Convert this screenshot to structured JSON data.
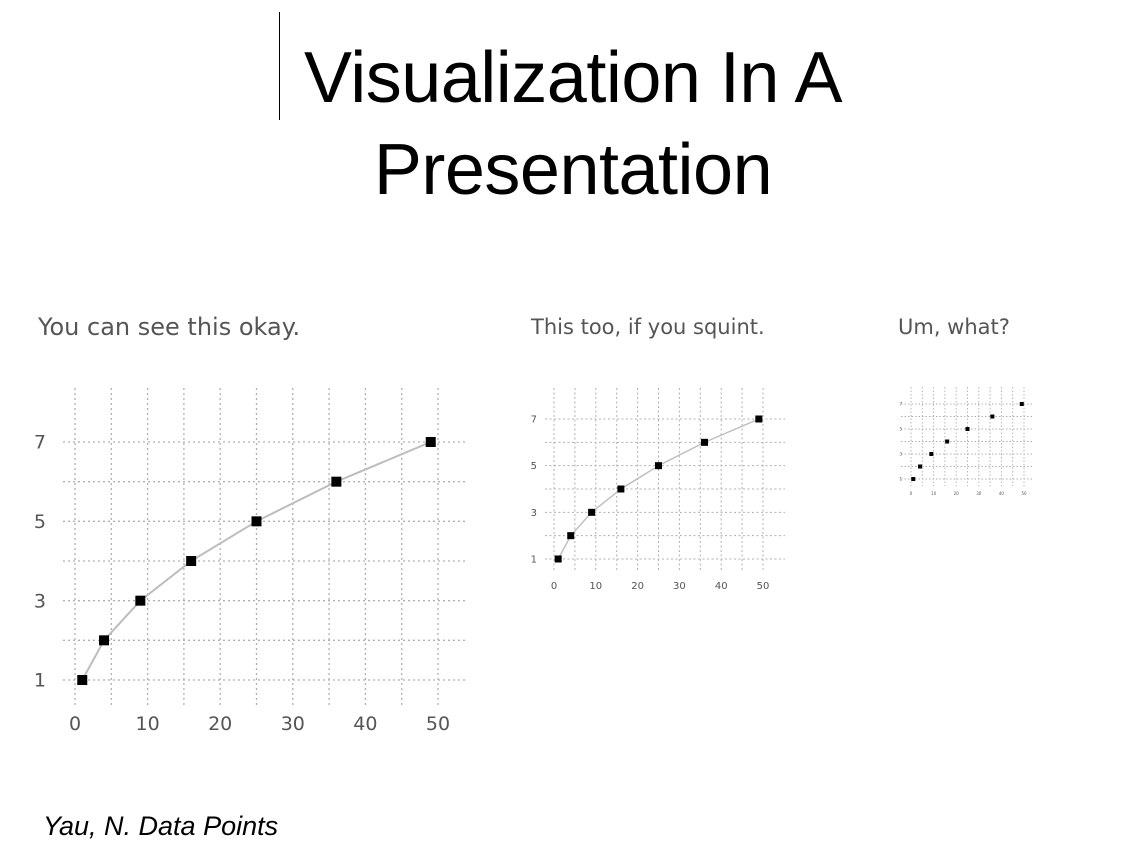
{
  "slide": {
    "title_line1": "Visualization In A",
    "title_line2": "Presentation",
    "citation": "Yau, N. Data Points"
  },
  "colors": {
    "line": "#bdbdbd",
    "grid": "#b0b0b0",
    "marker": "#000000",
    "tick_text": "#555555"
  },
  "chart_data": [
    {
      "type": "line",
      "title": "You can see this okay.",
      "x": [
        1,
        4,
        9,
        16,
        25,
        36,
        49
      ],
      "y": [
        1,
        2,
        3,
        4,
        5,
        6,
        7
      ],
      "xticks": [
        0,
        10,
        20,
        30,
        40,
        50
      ],
      "yticks": [
        1,
        3,
        5,
        7
      ],
      "xlim": [
        0,
        50
      ],
      "ylim": [
        1,
        7
      ],
      "grid": true,
      "markers": "square"
    },
    {
      "type": "line",
      "title": "This too, if you squint.",
      "x": [
        1,
        4,
        9,
        16,
        25,
        36,
        49
      ],
      "y": [
        1,
        2,
        3,
        4,
        5,
        6,
        7
      ],
      "xticks": [
        0,
        10,
        20,
        30,
        40,
        50
      ],
      "yticks": [
        1,
        3,
        5,
        7
      ],
      "xlim": [
        0,
        50
      ],
      "ylim": [
        1,
        7
      ],
      "grid": true,
      "markers": "square"
    },
    {
      "type": "scatter",
      "title": "Um, what?",
      "x": [
        1,
        4,
        9,
        16,
        25,
        36,
        49
      ],
      "y": [
        1,
        2,
        3,
        4,
        5,
        6,
        7
      ],
      "xticks": [
        0,
        10,
        20,
        30,
        40,
        50
      ],
      "yticks": [
        1,
        3,
        5,
        7
      ],
      "xlim": [
        0,
        50
      ],
      "ylim": [
        1,
        7
      ],
      "grid": true,
      "markers": "square"
    }
  ]
}
